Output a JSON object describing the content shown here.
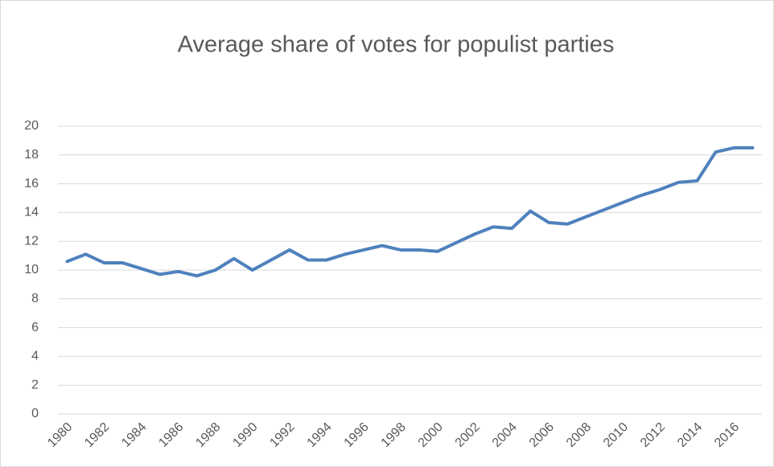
{
  "chart_data": {
    "type": "line",
    "title": "Average share of votes for populist parties",
    "categories": [
      "1980",
      null,
      "1982",
      null,
      "1984",
      null,
      "1986",
      null,
      "1988",
      null,
      "1990",
      null,
      "1992",
      null,
      "1994",
      null,
      "1996",
      null,
      "1998",
      null,
      "2000",
      null,
      "2002",
      null,
      "2004",
      null,
      "2006",
      null,
      "2008",
      null,
      "2010",
      null,
      "2012",
      null,
      "2014",
      null,
      "2016",
      null
    ],
    "series": [
      {
        "name": "Average share of votes",
        "color": "#4f81bd",
        "values": [
          10.6,
          11.1,
          10.5,
          10.5,
          10.1,
          9.7,
          9.9,
          9.6,
          10.0,
          10.8,
          10.0,
          10.7,
          11.4,
          10.7,
          10.7,
          11.1,
          11.4,
          11.7,
          11.4,
          11.4,
          11.3,
          11.9,
          12.5,
          13.0,
          12.9,
          14.1,
          13.3,
          13.2,
          13.7,
          14.2,
          14.7,
          15.2,
          15.6,
          16.1,
          16.2,
          18.2,
          18.5,
          18.5
        ]
      }
    ],
    "ylim": [
      0,
      20
    ],
    "yticks": [
      0,
      2,
      4,
      6,
      8,
      10,
      12,
      14,
      16,
      18,
      20
    ],
    "grid": true
  }
}
